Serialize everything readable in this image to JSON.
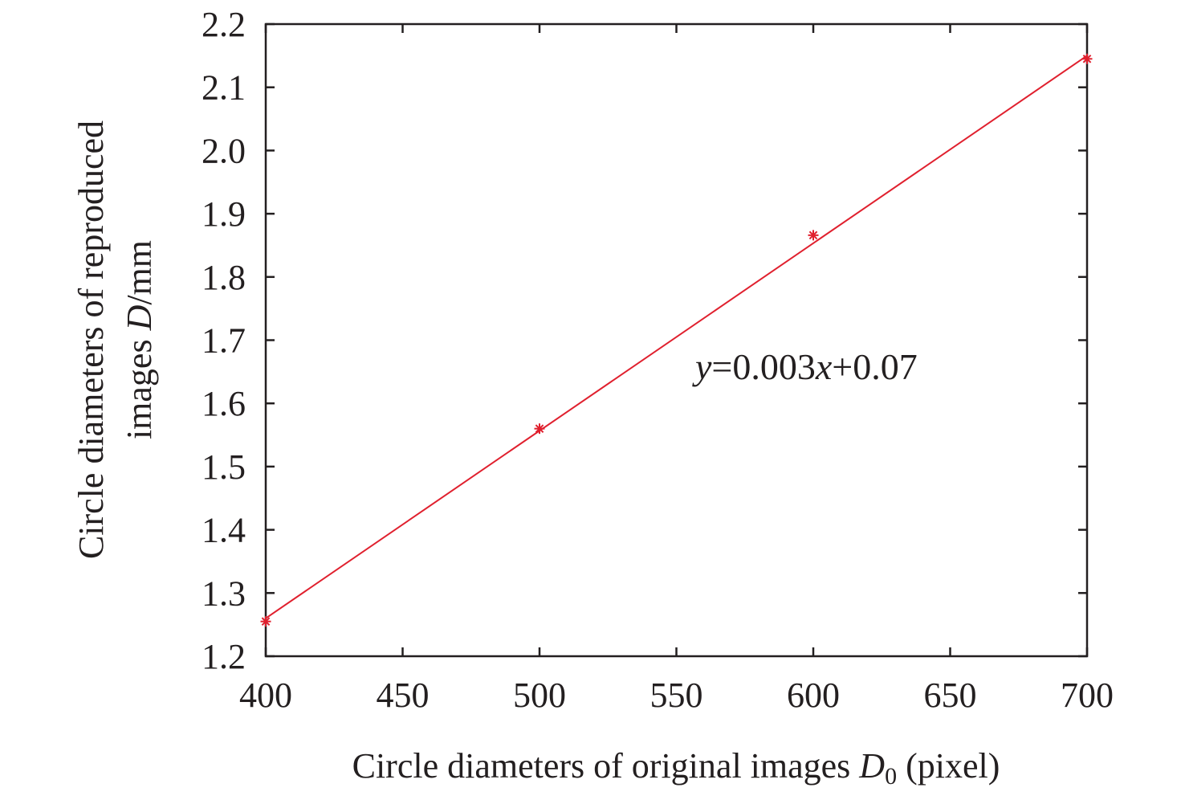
{
  "chart_data": {
    "type": "scatter",
    "title": "",
    "xlabel": {
      "prefix": "Circle diameters of original images ",
      "var": "D",
      "sub": "0",
      "suffix": " (pixel)"
    },
    "ylabel": {
      "line1": "Circle diameters of reproduced",
      "line2_prefix": "images ",
      "line2_var": "D",
      "line2_suffix": "/mm"
    },
    "xlim": [
      400,
      700
    ],
    "ylim": [
      1.2,
      2.2
    ],
    "xticks": [
      400,
      450,
      500,
      550,
      600,
      650,
      700
    ],
    "xtick_labels": [
      "400",
      "450",
      "500",
      "550",
      "600",
      "650",
      "700"
    ],
    "yticks": [
      1.2,
      1.3,
      1.4,
      1.5,
      1.6,
      1.7,
      1.8,
      1.9,
      2.0,
      2.1,
      2.2
    ],
    "ytick_labels": [
      "1.2",
      "1.3",
      "1.4",
      "1.5",
      "1.6",
      "1.7",
      "1.8",
      "1.9",
      "2.0",
      "2.1",
      "2.2"
    ],
    "grid": false,
    "series": [
      {
        "x": [
          400,
          500,
          600,
          700
        ],
        "y": [
          1.255,
          1.56,
          1.866,
          2.145
        ],
        "marker": "asterisk",
        "color": "#e0202e"
      }
    ],
    "fit_line": {
      "x": [
        400,
        700
      ],
      "y": [
        1.26,
        2.15
      ],
      "color": "#e0202e"
    },
    "annotation": {
      "y_var": "y",
      "eq_part1": "=0.003",
      "x_var": "x",
      "eq_part2": "+0.07"
    }
  }
}
